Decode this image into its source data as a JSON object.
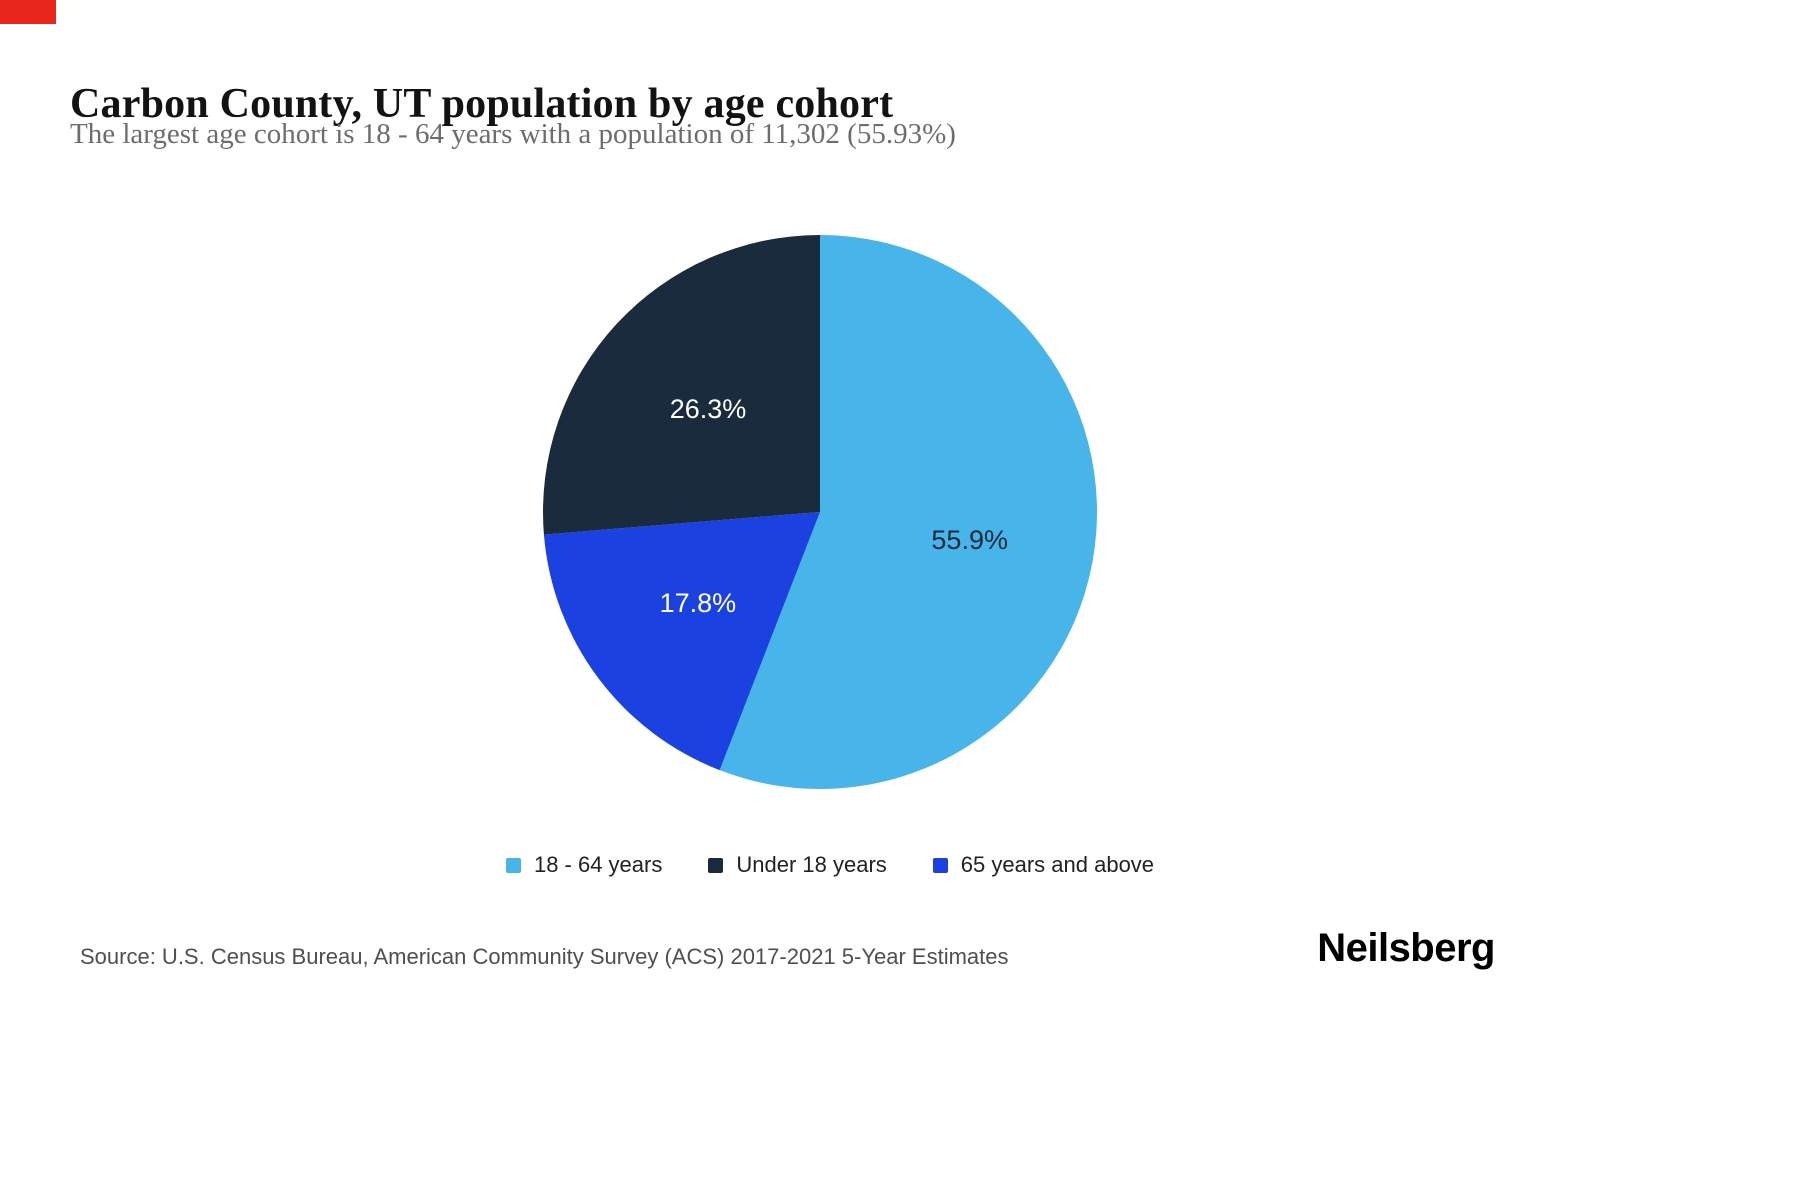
{
  "header": {
    "title": "Carbon County, UT population by age cohort",
    "subtitle": "The largest age cohort is 18 - 64 years with a population of 11,302 (55.93%)"
  },
  "footer": {
    "source": "Source: U.S. Census Bureau, American Community Survey (ACS) 2017-2021 5-Year Estimates",
    "brand": "Neilsberg"
  },
  "accent": {
    "corner_color": "#e8261c"
  },
  "chart_data": {
    "type": "pie",
    "title": "Carbon County, UT population by age cohort",
    "start_angle_deg": 0,
    "direction": "clockwise",
    "largest_cohort": {
      "label": "18 - 64 years",
      "population": 11302,
      "percent_display": "55.93%"
    },
    "slices": [
      {
        "id": "18-64-years",
        "label": "18 - 64 years",
        "percent": 55.9,
        "display": "55.9%",
        "color": "#47b5e9",
        "label_color": "#16293b"
      },
      {
        "id": "65-years-and-above",
        "label": "65 years and above",
        "percent": 17.8,
        "display": "17.8%",
        "color": "#1b41e0",
        "label_color": "#ffffff"
      },
      {
        "id": "under-18-years",
        "label": "Under 18 years",
        "percent": 26.3,
        "display": "26.3%",
        "color": "#1b2b3e",
        "label_color": "#ffffff"
      }
    ],
    "legend": [
      {
        "id": "18-64-years",
        "label": "18 - 64 years",
        "color": "#47b5e9"
      },
      {
        "id": "under-18-years",
        "label": "Under 18 years",
        "color": "#1b2b3e"
      },
      {
        "id": "65-years-and-above",
        "label": "65 years and above",
        "color": "#1b41e0"
      }
    ]
  }
}
